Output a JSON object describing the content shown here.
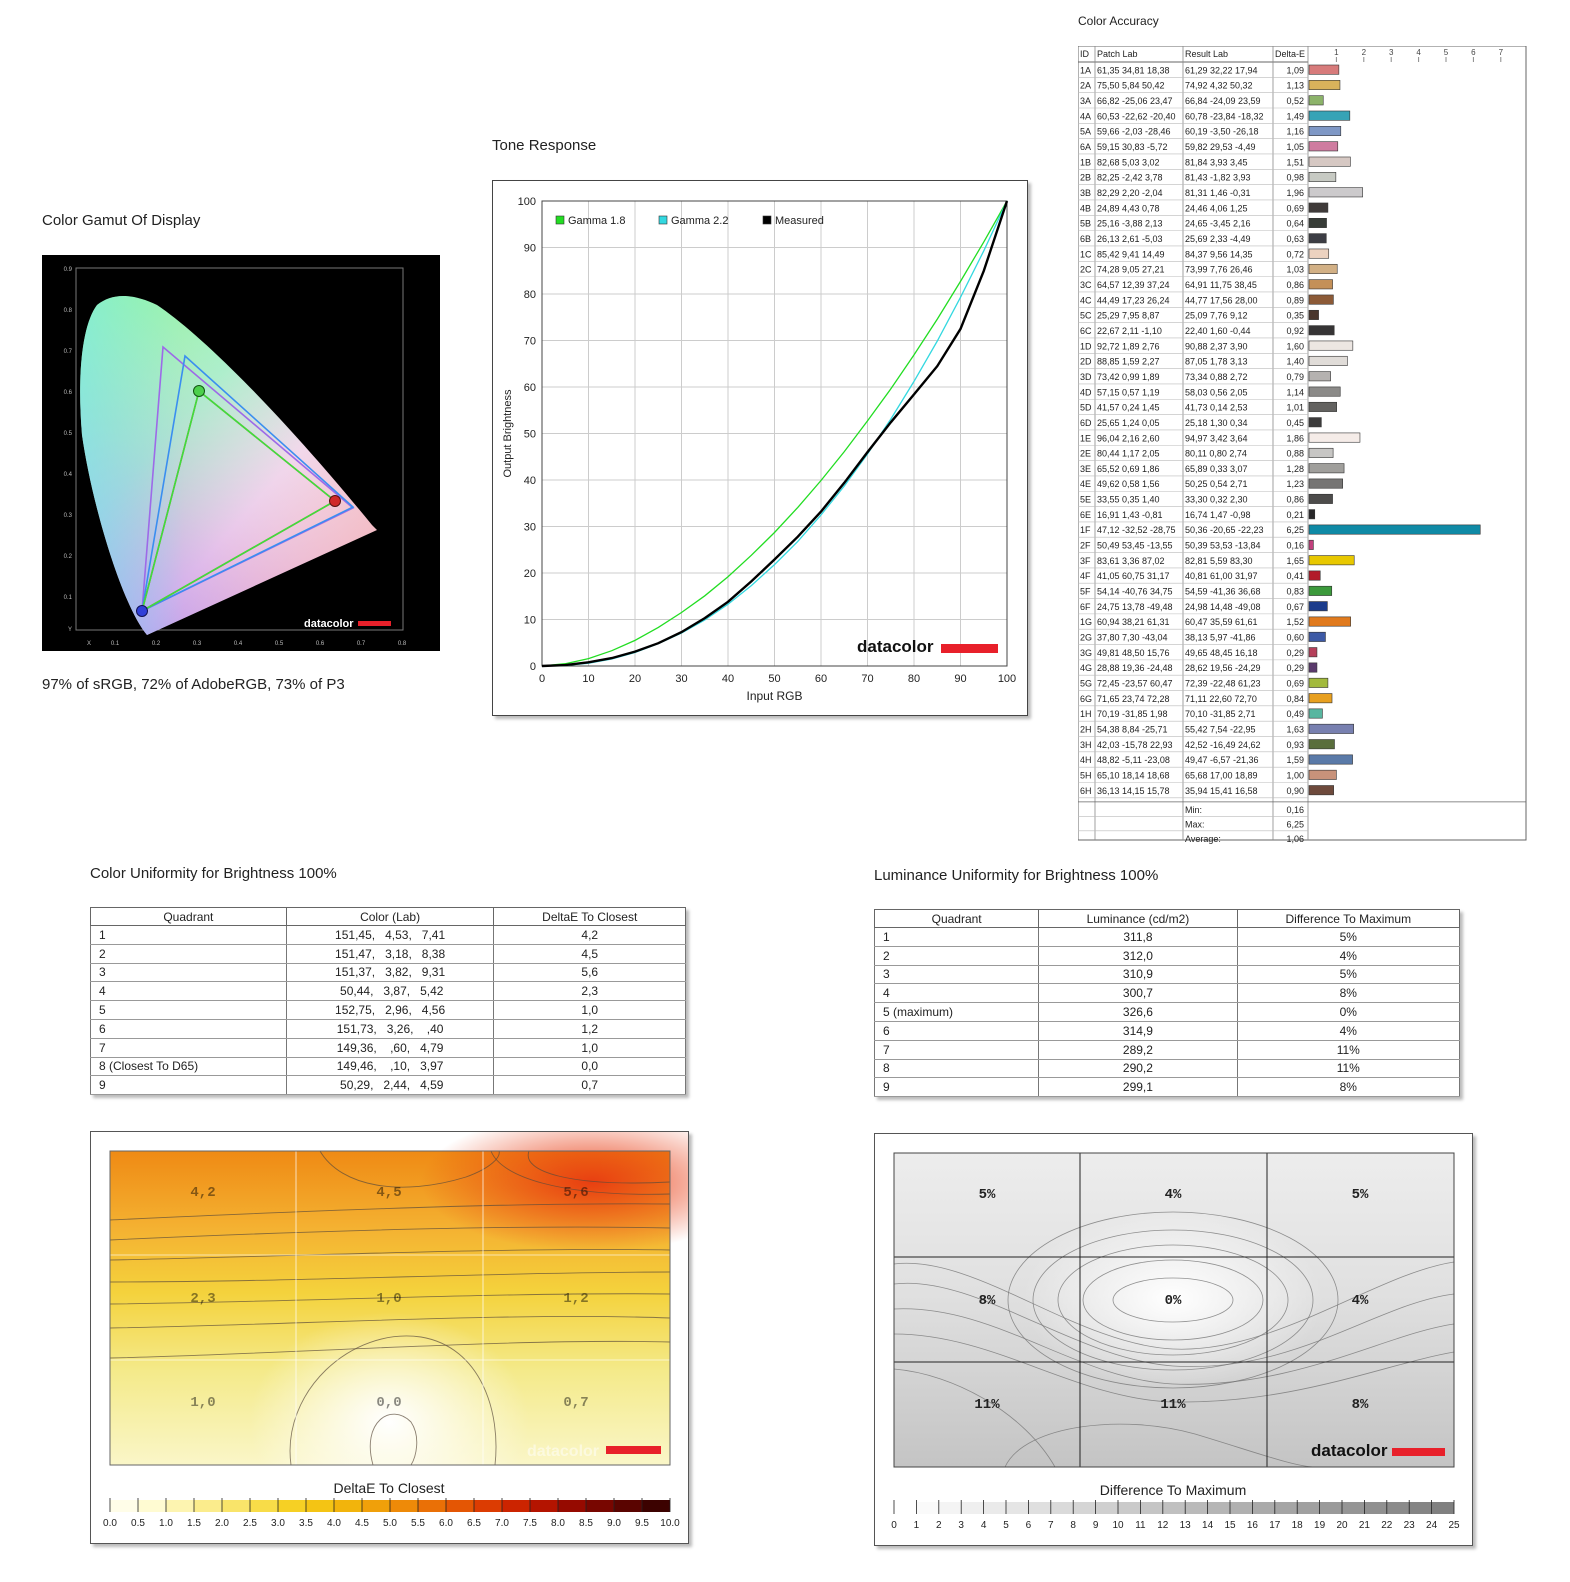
{
  "gamut": {
    "title": "Color Gamut Of Display",
    "caption": "97% of sRGB, 72% of AdobeRGB, 73% of P3",
    "y_ticks": [
      "0.9",
      "0.8",
      "0.7",
      "0.6",
      "0.5",
      "0.4",
      "0.3",
      "0.2",
      "0.1",
      "Y"
    ],
    "x_ticks": [
      "X",
      "0.1",
      "0.2",
      "0.3",
      "0.4",
      "0.5",
      "0.6",
      "0.7",
      "0.8"
    ],
    "logo": "datacolor"
  },
  "tone": {
    "title": "Tone Response",
    "logo": "datacolor",
    "colors": {
      "gamma18": "#22dd22",
      "gamma22": "#33d8e0",
      "measured": "#000000"
    }
  },
  "color_accuracy": {
    "title": "Color Accuracy",
    "headers": [
      "ID",
      "Patch Lab",
      "Result Lab",
      "Delta-E"
    ],
    "scale_ticks": [
      "1",
      "2",
      "3",
      "4",
      "5",
      "6",
      "7"
    ],
    "rows": [
      [
        "1A",
        "61,35  34,81  18,38",
        "61,29  32,22  17,94",
        "1,09",
        "#d77b7b"
      ],
      [
        "2A",
        "75,50  5,84  50,42",
        "74,92  4,32  50,32",
        "1,13",
        "#d9b25b"
      ],
      [
        "3A",
        "66,82 -25,06  23,47",
        "66,84 -24,09  23,59",
        "0,52",
        "#8cb36a"
      ],
      [
        "4A",
        "60,53 -22,62 -20,40",
        "60,78 -23,84 -18,32",
        "1,49",
        "#36a3b6"
      ],
      [
        "5A",
        "59,66  -2,03 -28,46",
        "60,19  -3,50 -26,18",
        "1,16",
        "#7f98c6"
      ],
      [
        "6A",
        "59,15  30,83  -5,72",
        "59,82  29,53  -4,49",
        "1,05",
        "#cf7ca0"
      ],
      [
        "1B",
        "82,68  5,03  3,02",
        "81,84  3,93  3,45",
        "1,51",
        "#d6c8c3"
      ],
      [
        "2B",
        "82,25  -2,42  3,78",
        "81,43  -1,82  3,93",
        "0,98",
        "#c7cac3"
      ],
      [
        "3B",
        "82,29  2,20  -2,04",
        "81,31  1,46  -0,31",
        "1,96",
        "#cccacc"
      ],
      [
        "4B",
        "24,89  4,43  0,78",
        "24,46  4,06  1,25",
        "0,69",
        "#3f3a39"
      ],
      [
        "5B",
        "25,16  -3,88  2,13",
        "24,65  -3,45  2,16",
        "0,64",
        "#373c37"
      ],
      [
        "6B",
        "26,13  2,61  -5,03",
        "25,69  2,33  -4,49",
        "0,63",
        "#3c3d44"
      ],
      [
        "1C",
        "85,42  9,41  14,49",
        "84,37  9,56  14,35",
        "0,72",
        "#ecd2c0"
      ],
      [
        "2C",
        "74,28  9,05  27,21",
        "73,99  7,76  26,46",
        "1,03",
        "#d2b085"
      ],
      [
        "3C",
        "64,57  12,39  37,24",
        "64,91  11,75  38,45",
        "0,86",
        "#c49058"
      ],
      [
        "4C",
        "44,49  17,23  26,24",
        "44,77  17,56  28,00",
        "0,89",
        "#8c5a37"
      ],
      [
        "5C",
        "25,29  7,95  8,87",
        "25,09  7,76  9,12",
        "0,35",
        "#49362d"
      ],
      [
        "6C",
        "22,67  2,11  -1,10",
        "22,40  1,60  -0,44",
        "0,92",
        "#363435"
      ],
      [
        "1D",
        "92,72  1,89  2,76",
        "90,88  2,37  3,90",
        "1,60",
        "#ece6e2"
      ],
      [
        "2D",
        "88,85  1,59  2,27",
        "87,05  1,78  3,13",
        "1,40",
        "#e0dcd8"
      ],
      [
        "3D",
        "73,42  0,99  1,89",
        "73,34  0,88  2,72",
        "0,79",
        "#b5b2b0"
      ],
      [
        "4D",
        "57,15  0,57  1,19",
        "58,03  0,56  2,05",
        "1,14",
        "#8b8a88"
      ],
      [
        "5D",
        "41,57  0,24  1,45",
        "41,73  0,14  2,53",
        "1,01",
        "#636260"
      ],
      [
        "6D",
        "25,65  1,24  0,05",
        "25,18  1,30  0,34",
        "0,45",
        "#3c3b3b"
      ],
      [
        "1E",
        "96,04  2,16  2,60",
        "94,97  3,42  3,64",
        "1,86",
        "#f5ece8"
      ],
      [
        "2E",
        "80,44  1,17  2,05",
        "80,11  0,80  2,74",
        "0,88",
        "#c7c6c4"
      ],
      [
        "3E",
        "65,52  0,69  1,86",
        "65,89  0,33  3,07",
        "1,28",
        "#a09f9c"
      ],
      [
        "4E",
        "49,62  0,58  1,56",
        "50,25  0,54  2,71",
        "1,23",
        "#767574"
      ],
      [
        "5E",
        "33,55  0,35  1,40",
        "33,30  0,32  2,30",
        "0,86",
        "#4d4c4b"
      ],
      [
        "6E",
        "16,91  1,43  -0,81",
        "16,74  1,47  -0,98",
        "0,21",
        "#282729"
      ],
      [
        "1F",
        "47,12 -32,52 -28,75",
        "50,36 -20,65 -22,23",
        "6,25",
        "#0f8aa6"
      ],
      [
        "2F",
        "50,49  53,45 -13,55",
        "50,39  53,53 -13,84",
        "0,16",
        "#c2407d"
      ],
      [
        "3F",
        "83,61  3,36  87,02",
        "82,81  5,59  83,30",
        "1,65",
        "#e8c800"
      ],
      [
        "4F",
        "41,05  60,75  31,17",
        "40,81  61,00  31,97",
        "0,41",
        "#b21b2a"
      ],
      [
        "5F",
        "54,14 -40,76  34,75",
        "54,59 -41,36  36,68",
        "0,83",
        "#3c9a3c"
      ],
      [
        "6F",
        "24,75  13,78 -49,48",
        "24,98  14,48 -49,08",
        "0,67",
        "#1c3c8c"
      ],
      [
        "1G",
        "60,94  38,21  61,31",
        "60,47  35,59  61,61",
        "1,52",
        "#e07a1e"
      ],
      [
        "2G",
        "37,80  7,30 -43,04",
        "38,13  5,97 -41,86",
        "0,60",
        "#3d5aa6"
      ],
      [
        "3G",
        "49,81  48,50  15,76",
        "49,65  48,45  16,18",
        "0,29",
        "#b53f5a"
      ],
      [
        "4G",
        "28,88  19,36 -24,48",
        "28,62  19,56 -24,29",
        "0,29",
        "#5a3a6c"
      ],
      [
        "5G",
        "72,45 -23,57  60,47",
        "72,39 -22,48  61,23",
        "0,69",
        "#a2ba3c"
      ],
      [
        "6G",
        "71,65  23,74  72,28",
        "71,11  22,60  72,70",
        "0,84",
        "#e8a020"
      ],
      [
        "1H",
        "70,19 -31,85  1,98",
        "70,10 -31,85  2,71",
        "0,49",
        "#58b6a0"
      ],
      [
        "2H",
        "54,38  8,84 -25,71",
        "55,42  7,54 -22,95",
        "1,63",
        "#7880b0"
      ],
      [
        "3H",
        "42,03 -15,78  22,93",
        "42,52 -16,49  24,62",
        "0,93",
        "#5a6e3c"
      ],
      [
        "4H",
        "48,82  -5,11 -23,08",
        "49,47  -6,57 -21,36",
        "1,59",
        "#5a7aa8"
      ],
      [
        "5H",
        "65,10  18,14  18,68",
        "65,68  17,00  18,89",
        "1,00",
        "#c8927a"
      ],
      [
        "6H",
        "36,13  14,15  15,78",
        "35,94  15,41  16,58",
        "0,90",
        "#6e4a3c"
      ]
    ],
    "summary": [
      [
        "Min:",
        "0,16"
      ],
      [
        "Max:",
        "6,25"
      ],
      [
        "Average:",
        "1,06"
      ]
    ]
  },
  "color_uniformity": {
    "title": "Color Uniformity for Brightness 100%",
    "headers": [
      "Quadrant",
      "Color (Lab)",
      "DeltaE To Closest"
    ],
    "rows": [
      [
        "1",
        "151,45,   4,53,   7,41",
        "4,2"
      ],
      [
        "2",
        "151,47,   3,18,   8,38",
        "4,5"
      ],
      [
        "3",
        "151,37,   3,82,   9,31",
        "5,6"
      ],
      [
        "4",
        " 50,44,   3,87,   5,42",
        "2,3"
      ],
      [
        "5",
        "152,75,   2,96,   4,56",
        "1,0"
      ],
      [
        "6",
        "151,73,   3,26,    ,40",
        "1,2"
      ],
      [
        "7",
        "149,36,    ,60,   4,79",
        "1,0"
      ],
      [
        "8 (Closest To D65)",
        "149,46,    ,10,   3,97",
        "0,0"
      ],
      [
        "9",
        " 50,29,   2,44,   4,59",
        "0,7"
      ]
    ],
    "map_labels": [
      "4,2",
      "4,5",
      "5,6",
      "2,3",
      "1,0",
      "1,2",
      "1,0",
      "0,0",
      "0,7"
    ],
    "legend_title": "DeltaE To Closest",
    "legend_ticks": [
      "0.0",
      "0.5",
      "1.0",
      "1.5",
      "2.0",
      "2.5",
      "3.0",
      "3.5",
      "4.0",
      "4.5",
      "5.0",
      "5.5",
      "6.0",
      "6.5",
      "7.0",
      "7.5",
      "8.0",
      "8.5",
      "9.0",
      "9.5",
      "10.0"
    ],
    "logo": "datacolor"
  },
  "luminance_uniformity": {
    "title": "Luminance Uniformity for Brightness 100%",
    "headers": [
      "Quadrant",
      "Luminance (cd/m2)",
      "Difference To Maximum"
    ],
    "rows": [
      [
        "1",
        "311,8",
        "5%"
      ],
      [
        "2",
        "312,0",
        "4%"
      ],
      [
        "3",
        "310,9",
        "5%"
      ],
      [
        "4",
        "300,7",
        "8%"
      ],
      [
        "5 (maximum)",
        "326,6",
        "0%"
      ],
      [
        "6",
        "314,9",
        "4%"
      ],
      [
        "7",
        "289,2",
        "11%"
      ],
      [
        "8",
        "290,2",
        "11%"
      ],
      [
        "9",
        "299,1",
        "8%"
      ]
    ],
    "map_labels": [
      "5%",
      "4%",
      "5%",
      "8%",
      "0%",
      "4%",
      "11%",
      "11%",
      "8%"
    ],
    "legend_title": "Difference To Maximum",
    "legend_ticks": [
      "0",
      "1",
      "2",
      "3",
      "4",
      "5",
      "6",
      "7",
      "8",
      "9",
      "10",
      "11",
      "12",
      "13",
      "14",
      "15",
      "16",
      "17",
      "18",
      "19",
      "20",
      "21",
      "22",
      "23",
      "24",
      "25"
    ],
    "logo": "datacolor"
  },
  "chart_data": [
    {
      "type": "line",
      "title": "Tone Response",
      "xlabel": "Input RGB",
      "ylabel": "Output Brightness",
      "xlim": [
        0,
        100
      ],
      "ylim": [
        0,
        100
      ],
      "x_ticks": [
        0,
        10,
        20,
        30,
        40,
        50,
        60,
        70,
        80,
        90,
        100
      ],
      "y_ticks": [
        0,
        10,
        20,
        30,
        40,
        50,
        60,
        70,
        80,
        90,
        100
      ],
      "legend_position": "top-left",
      "grid": true,
      "series": [
        {
          "name": "Gamma 1.8",
          "x": [
            0,
            5,
            10,
            15,
            20,
            25,
            30,
            35,
            40,
            45,
            50,
            55,
            60,
            65,
            70,
            75,
            80,
            85,
            90,
            95,
            100
          ],
          "y": [
            0,
            0.5,
            1.6,
            3.3,
            5.5,
            8.3,
            11.5,
            15.1,
            19.2,
            23.8,
            28.7,
            34.1,
            39.9,
            46.1,
            52.7,
            59.6,
            66.9,
            74.6,
            82.7,
            91.2,
            100
          ]
        },
        {
          "name": "Gamma 2.2",
          "x": [
            0,
            5,
            10,
            15,
            20,
            25,
            30,
            35,
            40,
            45,
            50,
            55,
            60,
            65,
            70,
            75,
            80,
            85,
            90,
            95,
            100
          ],
          "y": [
            0,
            0.1,
            0.6,
            1.5,
            2.9,
            4.8,
            7.1,
            9.9,
            13.3,
            17.3,
            21.8,
            26.8,
            32.5,
            38.7,
            45.6,
            53.1,
            61.2,
            69.9,
            79.3,
            89.3,
            100
          ]
        },
        {
          "name": "Measured",
          "x": [
            0,
            5,
            10,
            15,
            20,
            25,
            30,
            35,
            40,
            45,
            50,
            55,
            60,
            65,
            70,
            75,
            80,
            85,
            90,
            95,
            100
          ],
          "y": [
            0,
            0.2,
            0.8,
            1.7,
            3.1,
            4.9,
            7.3,
            10.3,
            13.8,
            18.2,
            22.9,
            27.8,
            33.2,
            39.4,
            46.0,
            52.4,
            58.4,
            64.5,
            72.5,
            85.0,
            100
          ]
        }
      ]
    },
    {
      "type": "bar",
      "title": "Color Accuracy",
      "categories": [
        "1A",
        "2A",
        "3A",
        "4A",
        "5A",
        "6A",
        "1B",
        "2B",
        "3B",
        "4B",
        "5B",
        "6B",
        "1C",
        "2C",
        "3C",
        "4C",
        "5C",
        "6C",
        "1D",
        "2D",
        "3D",
        "4D",
        "5D",
        "6D",
        "1E",
        "2E",
        "3E",
        "4E",
        "5E",
        "6E",
        "1F",
        "2F",
        "3F",
        "4F",
        "5F",
        "6F",
        "1G",
        "2G",
        "3G",
        "4G",
        "5G",
        "6G",
        "1H",
        "2H",
        "3H",
        "4H",
        "5H",
        "6H"
      ],
      "values": [
        1.09,
        1.13,
        0.52,
        1.49,
        1.16,
        1.05,
        1.51,
        0.98,
        1.96,
        0.69,
        0.64,
        0.63,
        0.72,
        1.03,
        0.86,
        0.89,
        0.35,
        0.92,
        1.6,
        1.4,
        0.79,
        1.14,
        1.01,
        0.45,
        1.86,
        0.88,
        1.28,
        1.23,
        0.86,
        0.21,
        6.25,
        0.16,
        1.65,
        0.41,
        0.83,
        0.67,
        1.52,
        0.6,
        0.29,
        0.29,
        0.69,
        0.84,
        0.49,
        1.63,
        0.93,
        1.59,
        1.0,
        0.9
      ],
      "xlim": [
        0,
        8
      ]
    }
  ]
}
